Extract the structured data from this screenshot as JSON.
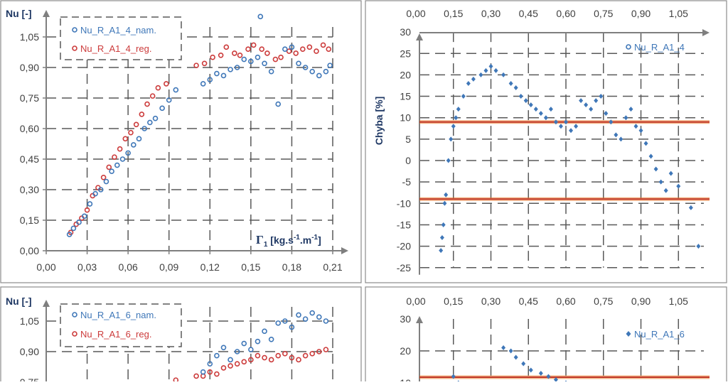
{
  "colors": {
    "blue": "#3f77b8",
    "red": "#cc3b3b",
    "orange": "#e8731f",
    "axis": "#7f7f7f",
    "grid": "#595959",
    "label": "#1f3864",
    "tick": "#404040"
  },
  "chart_data": [
    {
      "id": "top-left",
      "type": "scatter",
      "ylabel": "Nu [-]",
      "xlabel": "Γ1 [kg.s-1.m-1]",
      "xlim": [
        0,
        0.21
      ],
      "ylim": [
        0,
        1.2
      ],
      "xticks": [
        "0,00",
        "0,03",
        "0,06",
        "0,09",
        "0,12",
        "0,15",
        "0,18",
        "0,21"
      ],
      "yticks": [
        "0,00",
        "0,15",
        "0,30",
        "0,45",
        "0,60",
        "0,75",
        "0,90",
        "1,05"
      ],
      "grid": true,
      "legend_position": "top-left",
      "series": [
        {
          "name": "Nu_R_A1_4_nam.",
          "color": "blue",
          "points": [
            [
              0.017,
              0.08
            ],
            [
              0.02,
              0.11
            ],
            [
              0.024,
              0.14
            ],
            [
              0.028,
              0.17
            ],
            [
              0.032,
              0.23
            ],
            [
              0.036,
              0.28
            ],
            [
              0.04,
              0.3
            ],
            [
              0.044,
              0.34
            ],
            [
              0.048,
              0.39
            ],
            [
              0.052,
              0.42
            ],
            [
              0.056,
              0.45
            ],
            [
              0.06,
              0.48
            ],
            [
              0.064,
              0.52
            ],
            [
              0.068,
              0.55
            ],
            [
              0.072,
              0.6
            ],
            [
              0.076,
              0.63
            ],
            [
              0.08,
              0.65
            ],
            [
              0.085,
              0.7
            ],
            [
              0.09,
              0.74
            ],
            [
              0.095,
              0.79
            ],
            [
              0.115,
              0.82
            ],
            [
              0.12,
              0.84
            ],
            [
              0.125,
              0.87
            ],
            [
              0.13,
              0.86
            ],
            [
              0.135,
              0.89
            ],
            [
              0.14,
              0.9
            ],
            [
              0.145,
              0.94
            ],
            [
              0.15,
              0.93
            ],
            [
              0.155,
              0.95
            ],
            [
              0.157,
              1.15
            ],
            [
              0.16,
              0.92
            ],
            [
              0.165,
              0.88
            ],
            [
              0.17,
              0.72
            ],
            [
              0.175,
              0.99
            ],
            [
              0.18,
              1.0
            ],
            [
              0.185,
              0.92
            ],
            [
              0.19,
              0.9
            ],
            [
              0.195,
              0.88
            ],
            [
              0.2,
              0.86
            ],
            [
              0.205,
              0.88
            ],
            [
              0.208,
              0.91
            ]
          ]
        },
        {
          "name": "Nu_R_A1_4_reg.",
          "color": "red",
          "points": [
            [
              0.018,
              0.09
            ],
            [
              0.022,
              0.13
            ],
            [
              0.026,
              0.16
            ],
            [
              0.03,
              0.2
            ],
            [
              0.034,
              0.27
            ],
            [
              0.038,
              0.31
            ],
            [
              0.042,
              0.36
            ],
            [
              0.046,
              0.41
            ],
            [
              0.05,
              0.46
            ],
            [
              0.054,
              0.5
            ],
            [
              0.058,
              0.55
            ],
            [
              0.062,
              0.58
            ],
            [
              0.066,
              0.62
            ],
            [
              0.07,
              0.67
            ],
            [
              0.074,
              0.72
            ],
            [
              0.078,
              0.76
            ],
            [
              0.082,
              0.8
            ],
            [
              0.088,
              0.82
            ],
            [
              0.11,
              0.91
            ],
            [
              0.116,
              0.92
            ],
            [
              0.122,
              0.95
            ],
            [
              0.128,
              0.96
            ],
            [
              0.132,
              1.0
            ],
            [
              0.138,
              0.97
            ],
            [
              0.142,
              0.96
            ],
            [
              0.148,
              0.99
            ],
            [
              0.152,
              1.01
            ],
            [
              0.158,
              0.99
            ],
            [
              0.162,
              0.97
            ],
            [
              0.168,
              0.94
            ],
            [
              0.172,
              0.95
            ],
            [
              0.178,
              0.98
            ],
            [
              0.183,
              0.97
            ],
            [
              0.188,
              0.99
            ],
            [
              0.193,
              1.0
            ],
            [
              0.198,
              0.98
            ],
            [
              0.203,
              1.01
            ],
            [
              0.207,
              0.99
            ]
          ]
        }
      ]
    },
    {
      "id": "top-right",
      "type": "scatter",
      "ylabel": "Chyba [%]",
      "xlim": [
        0,
        1.2
      ],
      "ylim": [
        -25,
        30
      ],
      "xticks": [
        "0,00",
        "0,15",
        "0,30",
        "0,45",
        "0,60",
        "0,75",
        "0,90",
        "1,05"
      ],
      "yticks": [
        "30",
        "25",
        "20",
        "15",
        "10",
        "5",
        "0",
        "-5",
        "-10",
        "-15",
        "-20",
        "-25"
      ],
      "grid": true,
      "legend_position": "top-right",
      "reference_lines": [
        9,
        -9
      ],
      "series": [
        {
          "name": "Nu_R_A1_4",
          "color": "blue",
          "points": [
            [
              0.1,
              -21
            ],
            [
              0.105,
              -18
            ],
            [
              0.11,
              -15
            ],
            [
              0.115,
              -10
            ],
            [
              0.12,
              -8
            ],
            [
              0.13,
              0
            ],
            [
              0.14,
              5
            ],
            [
              0.15,
              8
            ],
            [
              0.16,
              10
            ],
            [
              0.17,
              12
            ],
            [
              0.19,
              15
            ],
            [
              0.21,
              18
            ],
            [
              0.23,
              19
            ],
            [
              0.26,
              20
            ],
            [
              0.28,
              21
            ],
            [
              0.3,
              22
            ],
            [
              0.32,
              21
            ],
            [
              0.35,
              20
            ],
            [
              0.38,
              18
            ],
            [
              0.4,
              17
            ],
            [
              0.42,
              15
            ],
            [
              0.44,
              14
            ],
            [
              0.46,
              13
            ],
            [
              0.48,
              12
            ],
            [
              0.5,
              11
            ],
            [
              0.52,
              10
            ],
            [
              0.54,
              12
            ],
            [
              0.56,
              9
            ],
            [
              0.58,
              8
            ],
            [
              0.6,
              9
            ],
            [
              0.62,
              7
            ],
            [
              0.64,
              8
            ],
            [
              0.66,
              14
            ],
            [
              0.68,
              13
            ],
            [
              0.7,
              12
            ],
            [
              0.72,
              14
            ],
            [
              0.74,
              15
            ],
            [
              0.76,
              11
            ],
            [
              0.78,
              9
            ],
            [
              0.8,
              6
            ],
            [
              0.82,
              5
            ],
            [
              0.84,
              10
            ],
            [
              0.86,
              12
            ],
            [
              0.88,
              8
            ],
            [
              0.9,
              7
            ],
            [
              0.92,
              4
            ],
            [
              0.94,
              1
            ],
            [
              0.96,
              -2
            ],
            [
              0.98,
              -5
            ],
            [
              1.0,
              -7
            ],
            [
              1.02,
              -3
            ],
            [
              1.05,
              -6
            ],
            [
              1.1,
              -11
            ],
            [
              1.13,
              -20
            ]
          ]
        }
      ]
    },
    {
      "id": "bottom-left",
      "type": "scatter",
      "ylabel": "Nu [-]",
      "ylim": [
        0,
        1.2
      ],
      "yticks": [
        "1,05",
        "0,90",
        "0,75"
      ],
      "grid": true,
      "legend_position": "top-left",
      "series": [
        {
          "name": "Nu_R_A1_6_nam.",
          "color": "blue",
          "points": [
            [
              0.115,
              0.8
            ],
            [
              0.12,
              0.84
            ],
            [
              0.125,
              0.88
            ],
            [
              0.13,
              0.92
            ],
            [
              0.135,
              0.86
            ],
            [
              0.14,
              0.9
            ],
            [
              0.145,
              0.94
            ],
            [
              0.15,
              0.91
            ],
            [
              0.155,
              0.95
            ],
            [
              0.16,
              1.0
            ],
            [
              0.165,
              0.96
            ],
            [
              0.17,
              1.04
            ],
            [
              0.175,
              1.05
            ],
            [
              0.18,
              1.02
            ],
            [
              0.185,
              1.08
            ],
            [
              0.19,
              1.06
            ],
            [
              0.195,
              1.09
            ],
            [
              0.2,
              1.07
            ],
            [
              0.205,
              1.05
            ]
          ]
        },
        {
          "name": "Nu_R_A1_6_reg.",
          "color": "red",
          "points": [
            [
              0.095,
              0.76
            ],
            [
              0.11,
              0.78
            ],
            [
              0.115,
              0.78
            ],
            [
              0.12,
              0.8
            ],
            [
              0.125,
              0.79
            ],
            [
              0.13,
              0.82
            ],
            [
              0.135,
              0.83
            ],
            [
              0.14,
              0.84
            ],
            [
              0.145,
              0.85
            ],
            [
              0.15,
              0.86
            ],
            [
              0.155,
              0.88
            ],
            [
              0.16,
              0.87
            ],
            [
              0.165,
              0.86
            ],
            [
              0.17,
              0.88
            ],
            [
              0.175,
              0.89
            ],
            [
              0.18,
              0.87
            ],
            [
              0.185,
              0.86
            ],
            [
              0.19,
              0.88
            ],
            [
              0.195,
              0.89
            ],
            [
              0.2,
              0.9
            ],
            [
              0.205,
              0.91
            ]
          ]
        }
      ]
    },
    {
      "id": "bottom-right",
      "type": "scatter",
      "xlim": [
        0,
        1.2
      ],
      "ylim": [
        -25,
        30
      ],
      "xticks": [
        "0,00",
        "0,15",
        "0,30",
        "0,45",
        "0,60",
        "0,75",
        "0,90",
        "1,05"
      ],
      "yticks": [
        "30",
        "20",
        "10"
      ],
      "grid": true,
      "legend_position": "top-right",
      "reference_lines": [
        11
      ],
      "series": [
        {
          "name": "Nu_R_A1_6",
          "color": "blue",
          "points": [
            [
              0.15,
              12
            ],
            [
              0.17,
              10
            ],
            [
              0.19,
              8
            ],
            [
              0.35,
              21
            ],
            [
              0.38,
              20
            ],
            [
              0.4,
              18
            ],
            [
              0.43,
              16
            ],
            [
              0.46,
              14
            ],
            [
              0.5,
              13
            ],
            [
              0.53,
              12
            ],
            [
              0.56,
              11
            ],
            [
              0.6,
              10
            ]
          ]
        }
      ]
    }
  ]
}
